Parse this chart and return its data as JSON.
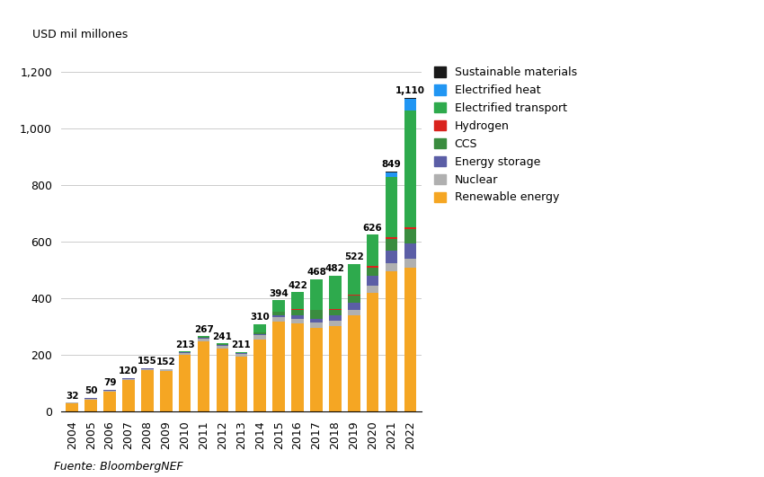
{
  "years": [
    2004,
    2005,
    2006,
    2007,
    2008,
    2009,
    2010,
    2011,
    2012,
    2013,
    2014,
    2015,
    2016,
    2017,
    2018,
    2019,
    2020,
    2021,
    2022
  ],
  "totals": [
    32,
    50,
    79,
    120,
    155,
    152,
    213,
    267,
    241,
    211,
    310,
    394,
    422,
    468,
    482,
    522,
    626,
    849,
    1110
  ],
  "renewable_energy": [
    30,
    44,
    71,
    112,
    147,
    144,
    200,
    248,
    222,
    194,
    255,
    318,
    312,
    296,
    303,
    340,
    420,
    495,
    510
  ],
  "nuclear": [
    2,
    3,
    5,
    5,
    5,
    5,
    8,
    10,
    10,
    10,
    15,
    15,
    17,
    18,
    18,
    20,
    25,
    30,
    30
  ],
  "energy_storage": [
    0,
    1,
    1,
    1,
    1,
    1,
    2,
    3,
    3,
    3,
    5,
    9,
    12,
    15,
    20,
    25,
    35,
    45,
    55
  ],
  "ccs": [
    0,
    1,
    1,
    1,
    1,
    1,
    2,
    3,
    3,
    2,
    5,
    10,
    20,
    30,
    20,
    25,
    30,
    40,
    50
  ],
  "hydrogen": [
    0,
    0,
    0,
    0,
    0,
    0,
    0,
    0,
    0,
    0,
    0,
    1,
    1,
    1,
    2,
    3,
    5,
    6,
    8
  ],
  "electrified_transport": [
    0,
    1,
    1,
    1,
    1,
    1,
    1,
    3,
    3,
    2,
    30,
    41,
    60,
    108,
    119,
    109,
    111,
    213,
    410
  ],
  "electrified_heat": [
    0,
    0,
    0,
    0,
    0,
    0,
    0,
    0,
    0,
    0,
    0,
    0,
    0,
    0,
    0,
    0,
    0,
    16,
    42
  ],
  "sustainable_materials": [
    0,
    0,
    0,
    0,
    0,
    0,
    0,
    0,
    0,
    0,
    0,
    0,
    0,
    0,
    0,
    0,
    0,
    4,
    5
  ],
  "colors": {
    "renewable_energy": "#f5a623",
    "nuclear": "#b0b0b0",
    "energy_storage": "#5b5ea6",
    "ccs": "#3a8c3f",
    "hydrogen": "#d9231d",
    "electrified_transport": "#2eaa4d",
    "electrified_heat": "#2196f3",
    "sustainable_materials": "#1a1a1a"
  },
  "legend_labels": {
    "sustainable_materials": "Sustainable materials",
    "electrified_heat": "Electrified heat",
    "electrified_transport": "Electrified transport",
    "hydrogen": "Hydrogen",
    "ccs": "CCS",
    "energy_storage": "Energy storage",
    "nuclear": "Nuclear",
    "renewable_energy": "Renewable energy"
  },
  "ylabel": "USD mil millones",
  "ylim": [
    0,
    1250
  ],
  "yticks": [
    0,
    200,
    400,
    600,
    800,
    1000,
    1200
  ],
  "source": "Fuente: BloombergNEF",
  "background_color": "#ffffff"
}
